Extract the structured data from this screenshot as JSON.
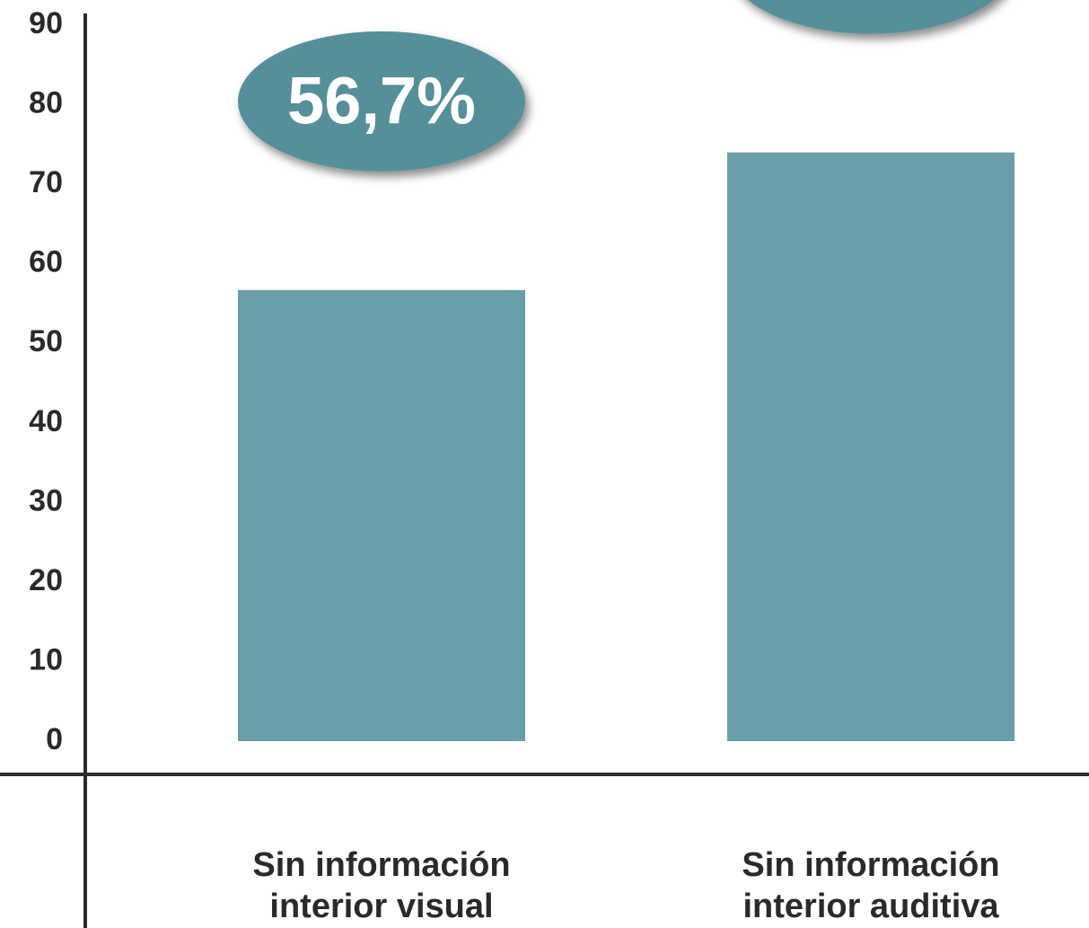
{
  "chart_data": {
    "type": "bar",
    "categories": [
      "Sin información interior visual",
      "Sin información interior auditiva"
    ],
    "values": [
      56.7,
      74
    ],
    "value_labels": [
      "56,7%",
      null
    ],
    "color": "#6a9ea8",
    "bubble_color": "#558f9a",
    "ylim": [
      0,
      90
    ],
    "yticks": [
      0,
      10,
      20,
      30,
      40,
      50,
      60,
      70,
      80,
      90
    ],
    "grid": false
  }
}
